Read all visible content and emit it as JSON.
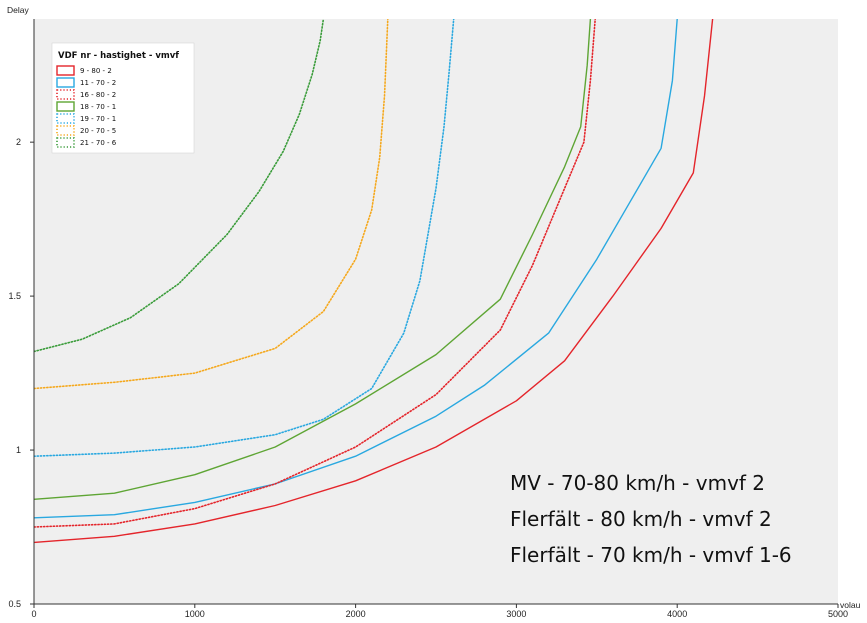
{
  "chart_data": {
    "type": "line",
    "xlabel": "volau",
    "ylabel": "Delay",
    "xlim": [
      0,
      5000
    ],
    "ylim": [
      0.5,
      2.4
    ],
    "grid": false,
    "background": "#efefef",
    "x_ticks": [
      "0",
      "1000",
      "2000",
      "3000",
      "4000",
      "5000"
    ],
    "y_ticks": [
      "0.5",
      "1",
      "1.5",
      "2"
    ],
    "legend": {
      "title": "VDF nr - hastighet - vmvf",
      "placement": "top-left"
    },
    "series": [
      {
        "name": "9 - 80 - 2",
        "color": "#e4252b",
        "style": "solid",
        "x": [
          0,
          500,
          1000,
          1500,
          2000,
          2500,
          3000,
          3300,
          3600,
          3900,
          4100,
          4170,
          4220
        ],
        "y": [
          0.7,
          0.72,
          0.76,
          0.82,
          0.9,
          1.01,
          1.16,
          1.29,
          1.5,
          1.72,
          1.9,
          2.15,
          2.4
        ]
      },
      {
        "name": "11 - 70 - 2",
        "color": "#29a8e0",
        "style": "solid",
        "x": [
          0,
          500,
          1000,
          1500,
          2000,
          2500,
          2800,
          3200,
          3500,
          3700,
          3900,
          3970,
          4000
        ],
        "y": [
          0.78,
          0.79,
          0.83,
          0.89,
          0.98,
          1.11,
          1.21,
          1.38,
          1.62,
          1.8,
          1.98,
          2.2,
          2.4
        ]
      },
      {
        "name": "16 - 80 - 2",
        "color": "#e4252b",
        "style": "dotted",
        "x": [
          0,
          500,
          1000,
          1500,
          2000,
          2500,
          2900,
          3100,
          3300,
          3420,
          3460,
          3490
        ],
        "y": [
          0.75,
          0.76,
          0.81,
          0.89,
          1.01,
          1.18,
          1.39,
          1.6,
          1.85,
          2.0,
          2.2,
          2.4
        ]
      },
      {
        "name": "18 - 70 - 1",
        "color": "#5ea534",
        "style": "solid",
        "x": [
          0,
          500,
          1000,
          1500,
          2000,
          2500,
          2900,
          3100,
          3300,
          3400,
          3440,
          3460
        ],
        "y": [
          0.84,
          0.86,
          0.92,
          1.01,
          1.15,
          1.31,
          1.49,
          1.7,
          1.92,
          2.05,
          2.25,
          2.4
        ]
      },
      {
        "name": "19 - 70 - 1",
        "color": "#29a8e0",
        "style": "dotted",
        "x": [
          0,
          500,
          1000,
          1500,
          1800,
          2100,
          2300,
          2400,
          2500,
          2550,
          2580,
          2610
        ],
        "y": [
          0.98,
          0.99,
          1.01,
          1.05,
          1.1,
          1.2,
          1.38,
          1.55,
          1.85,
          2.05,
          2.22,
          2.4
        ]
      },
      {
        "name": "20 - 70 - 5",
        "color": "#f5a81c",
        "style": "dotted",
        "x": [
          0,
          500,
          1000,
          1500,
          1800,
          2000,
          2100,
          2150,
          2180,
          2200
        ],
        "y": [
          1.2,
          1.22,
          1.25,
          1.33,
          1.45,
          1.62,
          1.78,
          1.95,
          2.15,
          2.4
        ]
      },
      {
        "name": "21 - 70 - 6",
        "color": "#3a9c3a",
        "style": "dotted",
        "x": [
          0,
          300,
          600,
          900,
          1200,
          1400,
          1550,
          1650,
          1730,
          1780,
          1800
        ],
        "y": [
          1.32,
          1.36,
          1.43,
          1.54,
          1.7,
          1.84,
          1.97,
          2.09,
          2.22,
          2.33,
          2.4
        ]
      }
    ],
    "annotations": [
      "MV - 70-80 km/h - vmvf 2",
      "Flerfält - 80 km/h - vmvf 2",
      "Flerfält - 70 km/h - vmvf 1-6"
    ]
  }
}
